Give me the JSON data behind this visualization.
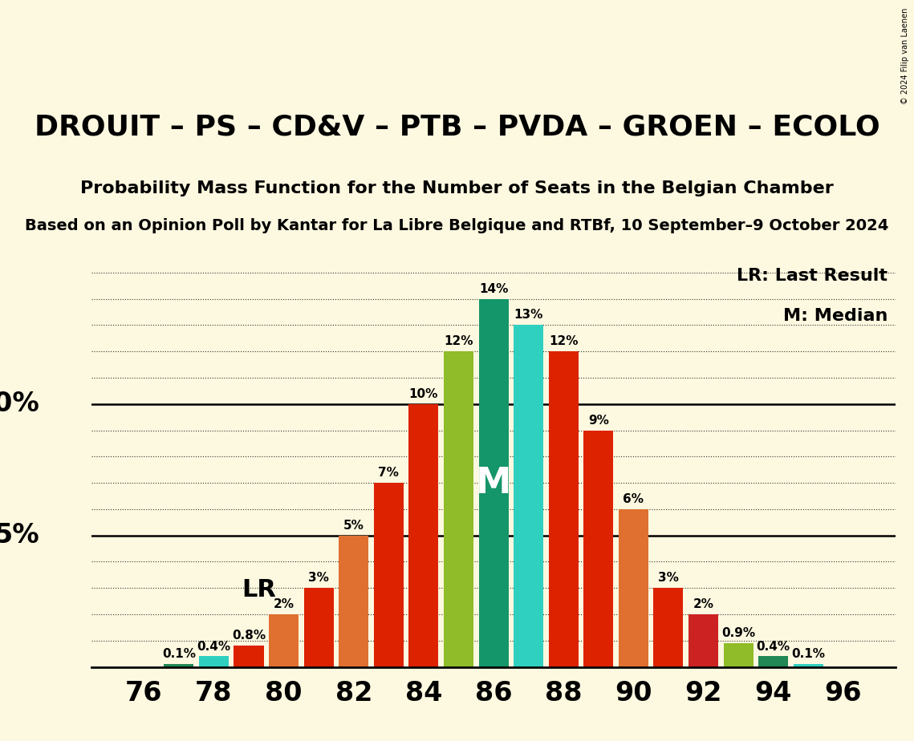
{
  "seats": [
    76,
    77,
    78,
    79,
    80,
    81,
    82,
    83,
    84,
    85,
    86,
    87,
    88,
    89,
    90,
    91,
    92,
    93,
    94,
    95,
    96
  ],
  "probabilities": [
    0.0,
    0.1,
    0.4,
    0.8,
    2.0,
    3.0,
    5.0,
    7.0,
    10.0,
    12.0,
    14.0,
    13.0,
    12.0,
    9.0,
    6.0,
    3.0,
    2.0,
    0.9,
    0.4,
    0.1,
    0.0
  ],
  "bar_colors": [
    "#a8b820",
    "#228855",
    "#30d0c0",
    "#dd2200",
    "#e07030",
    "#dd2200",
    "#e07030",
    "#dd2200",
    "#dd2200",
    "#8fbc28",
    "#15956a",
    "#30d0c0",
    "#dd2200",
    "#dd2200",
    "#e07030",
    "#dd2200",
    "#cc2222",
    "#8fbc28",
    "#228855",
    "#30d0c0",
    "#cc2222"
  ],
  "median_seat": 86,
  "lr_seat": 80,
  "title1": "DROUIT – PS – CD&V – PTB – PVDA – GROEN – ECOLO",
  "title2": "Probability Mass Function for the Number of Seats in the Belgian Chamber",
  "title3": "Based on an Opinion Poll by Kantar for La Libre Belgique and RTBf, 10 September–9 October 2024",
  "background_color": "#fdf8e0",
  "ylim": [
    0,
    15.5
  ],
  "copyright": "© 2024 Filip van Laenen",
  "label_fontsize": 11,
  "tick_fontsize": 24,
  "ylabel_fontsize": 24,
  "title1_fontsize": 26,
  "title2_fontsize": 16,
  "title3_fontsize": 14
}
